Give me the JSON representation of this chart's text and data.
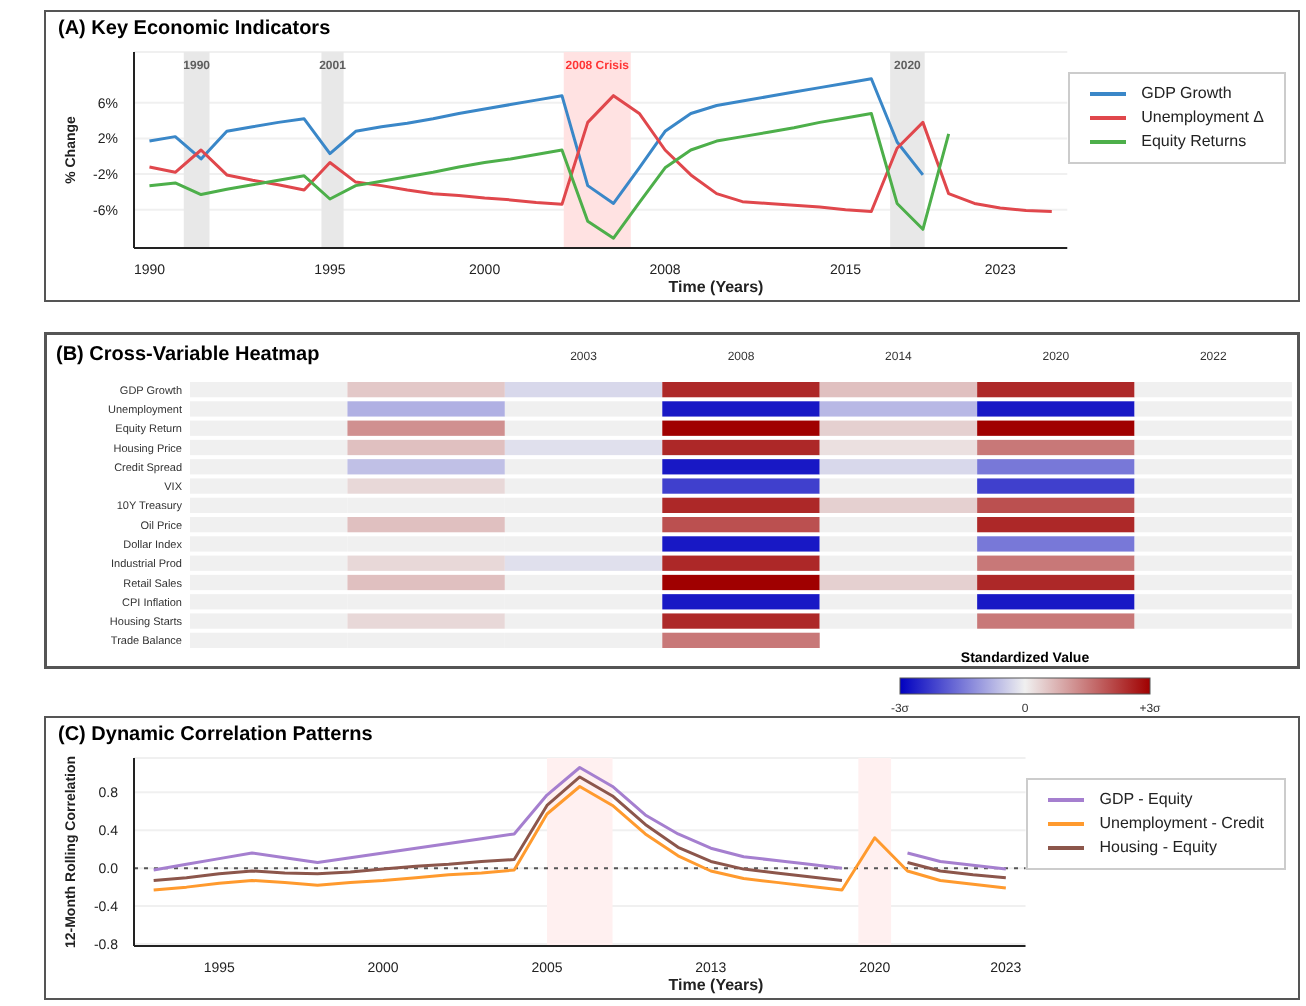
{
  "chart_data": [
    {
      "type": "line",
      "title": "(A) Key Economic Indicators",
      "xlabel": "Time (Years)",
      "ylabel": "% Change",
      "categories": [
        "1990",
        null,
        null,
        null,
        null,
        null,
        null,
        "1995",
        null,
        null,
        null,
        null,
        null,
        "2000",
        null,
        null,
        null,
        null,
        null,
        null,
        "2008",
        null,
        null,
        null,
        null,
        null,
        null,
        "2015",
        null,
        null,
        null,
        null,
        null,
        "2023",
        null,
        null
      ],
      "ylim": [
        -10.3,
        11.7
      ],
      "yticks": [
        {
          "value": -6,
          "label": "-6%"
        },
        {
          "value": -2,
          "label": "-2%"
        },
        {
          "value": 2,
          "label": "2%"
        },
        {
          "value": 6,
          "label": "6%"
        }
      ],
      "grid": "y",
      "legend": "top right",
      "annotations": [
        "1990",
        "2001",
        "2008 Crisis",
        "2020"
      ],
      "series": [
        {
          "name": "GDP Growth",
          "color": "#3a87c8",
          "values": [
            1.7,
            2.2,
            -0.3,
            2.8,
            3.3,
            3.8,
            4.2,
            0.3,
            2.8,
            3.3,
            3.7,
            4.2,
            4.8,
            5.3,
            5.8,
            6.3,
            6.8,
            -3.3,
            -5.3,
            -1.3,
            2.8,
            4.8,
            5.7,
            6.2,
            6.7,
            7.2,
            7.7,
            8.2,
            8.7,
            1.6,
            -2.1,
            null,
            null,
            null,
            null,
            null
          ]
        },
        {
          "name": "Unemployment Δ",
          "color": "#e0474c",
          "values": [
            -1.2,
            -1.8,
            0.7,
            -2.1,
            -2.7,
            -3.2,
            -3.8,
            -0.7,
            -2.9,
            -3.3,
            -3.8,
            -4.2,
            -4.4,
            -4.7,
            -4.9,
            -5.2,
            -5.4,
            3.8,
            6.8,
            4.8,
            0.7,
            -2.1,
            -4.2,
            -5.1,
            -5.3,
            -5.5,
            -5.7,
            -6.0,
            -6.2,
            0.9,
            3.8,
            -4.2,
            -5.3,
            -5.8,
            -6.1,
            -6.2
          ]
        },
        {
          "name": "Equity Returns",
          "color": "#4daf4a",
          "values": [
            -3.3,
            -3.0,
            -4.3,
            -3.7,
            -3.2,
            -2.7,
            -2.2,
            -4.8,
            -3.3,
            -2.8,
            -2.3,
            -1.8,
            -1.2,
            -0.7,
            -0.3,
            0.2,
            0.7,
            -7.3,
            -9.2,
            -5.2,
            -1.3,
            0.7,
            1.7,
            2.2,
            2.7,
            3.2,
            3.8,
            4.3,
            4.8,
            -5.3,
            -8.2,
            2.5,
            null,
            null,
            null,
            null
          ]
        }
      ]
    },
    {
      "type": "heatmap",
      "title": "(B) Cross-Variable Heatmap",
      "clabel": "Standardized Value",
      "categories": [
        null,
        null,
        "2003",
        "2008",
        "2014",
        "2020",
        "2022"
      ],
      "y_categories": [
        "GDP Growth",
        "Unemployment",
        "Equity Return",
        "Housing Price",
        "Credit Spread",
        "VIX",
        "10Y Treasury",
        "Oil Price",
        "Dollar Index",
        "Industrial Prod",
        "Retail Sales",
        "CPI Inflation",
        "Housing Starts",
        "Trade Balance"
      ],
      "cells": [
        [
          0,
          0.5,
          -0.3,
          2.5,
          0.6,
          2.5,
          0
        ],
        [
          0,
          -0.8,
          0,
          -2.7,
          -0.7,
          -2.7,
          0
        ],
        [
          0,
          1.2,
          0,
          3,
          0.4,
          3,
          0
        ],
        [
          0,
          0.6,
          -0.2,
          2.5,
          0.2,
          1.5,
          0
        ],
        [
          0,
          -0.6,
          0,
          -2.7,
          -0.3,
          -1.5,
          0
        ],
        [
          0,
          0.3,
          0,
          -2.2,
          0,
          -2.2,
          0
        ],
        [
          0,
          0,
          0,
          2.5,
          0.4,
          2,
          0
        ],
        [
          0,
          0.6,
          0,
          2,
          0,
          2.5,
          0
        ],
        [
          0,
          0,
          0,
          -2.7,
          0,
          -1.5,
          0
        ],
        [
          0,
          0.3,
          -0.2,
          2.5,
          0,
          1.5,
          0
        ],
        [
          0,
          0.6,
          0,
          3,
          0.4,
          2.5,
          0
        ],
        [
          0,
          0,
          0,
          -2.7,
          0,
          -2.7,
          0
        ],
        [
          0,
          0.3,
          0,
          2.5,
          0,
          1.5,
          0
        ],
        [
          0,
          0,
          0,
          1.5,
          null,
          null,
          null
        ]
      ],
      "clim": [
        -3,
        3
      ],
      "cticks": [
        {
          "value": -3,
          "label": "-3σ"
        },
        0,
        {
          "value": 3,
          "label": "+3σ"
        }
      ]
    },
    {
      "type": "line",
      "title": "(C) Dynamic Correlation Patterns",
      "xlabel": "Time (Years)",
      "ylabel": "12-Month Rolling Correlation",
      "categories": [
        null,
        null,
        "1995",
        null,
        null,
        null,
        null,
        "2000",
        null,
        null,
        null,
        null,
        "2005",
        null,
        null,
        null,
        null,
        "2013",
        null,
        null,
        null,
        null,
        "2020",
        null,
        null,
        null,
        "2023"
      ],
      "ylim": [
        -0.82,
        1.16
      ],
      "yticks": [
        {
          "value": -0.8,
          "label": "-0.8"
        },
        {
          "value": -0.4,
          "label": "-0.4"
        },
        {
          "value": 0,
          "label": "0.0"
        },
        {
          "value": 0.4,
          "label": "0.4"
        },
        {
          "value": 0.8,
          "label": "0.8"
        }
      ],
      "grid": "y",
      "legend": "top right",
      "ref_lines": [
        {
          "axis": "y",
          "value": 0,
          "line_style": "dotted"
        }
      ],
      "series": [
        {
          "name": "GDP - Equity",
          "color": "#a57fcf",
          "values": [
            -0.02,
            0.04,
            0.1,
            0.16,
            0.11,
            0.06,
            0.11,
            0.16,
            0.21,
            0.26,
            0.31,
            0.36,
            0.77,
            1.06,
            0.86,
            0.56,
            0.36,
            0.21,
            0.12,
            0.08,
            0.04,
            0,
            null,
            0.16,
            0.07,
            0.03,
            -0.01
          ]
        },
        {
          "name": "Unemployment - Credit",
          "color": "#ff9a2e",
          "values": [
            -0.23,
            -0.2,
            -0.16,
            -0.13,
            -0.15,
            -0.18,
            -0.15,
            -0.13,
            -0.1,
            -0.07,
            -0.05,
            -0.02,
            0.57,
            0.86,
            0.66,
            0.36,
            0.13,
            -0.03,
            -0.11,
            -0.15,
            -0.19,
            -0.23,
            0.32,
            -0.03,
            -0.13,
            -0.17,
            -0.21
          ]
        },
        {
          "name": "Housing - Equity",
          "color": "#8c564b",
          "values": [
            -0.13,
            -0.1,
            -0.06,
            -0.03,
            -0.05,
            -0.06,
            -0.04,
            -0.01,
            0.02,
            0.04,
            0.07,
            0.09,
            0.66,
            0.96,
            0.76,
            0.46,
            0.22,
            0.07,
            -0.01,
            -0.05,
            -0.09,
            -0.13,
            null,
            0.06,
            -0.03,
            -0.07,
            -0.1
          ]
        }
      ]
    }
  ]
}
